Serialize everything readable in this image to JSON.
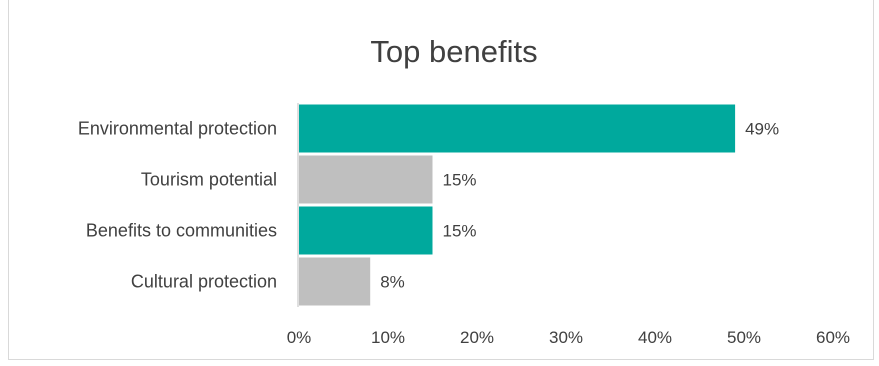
{
  "chart_data": {
    "type": "bar",
    "orientation": "horizontal",
    "title": "Top benefits",
    "categories": [
      "Environmental protection",
      "Tourism potential",
      "Benefits to communities",
      "Cultural protection"
    ],
    "values": [
      49,
      15,
      15,
      8
    ],
    "value_labels": [
      "49%",
      "15%",
      "15%",
      "8%"
    ],
    "bar_colors": [
      "#00a99d",
      "#bfbfbf",
      "#00a99d",
      "#bfbfbf"
    ],
    "xlim": [
      0,
      60
    ],
    "x_ticks": [
      0,
      10,
      20,
      30,
      40,
      50,
      60
    ],
    "x_tick_labels": [
      "0%",
      "10%",
      "20%",
      "30%",
      "40%",
      "50%",
      "60%"
    ],
    "grid": false,
    "legend": "none"
  }
}
